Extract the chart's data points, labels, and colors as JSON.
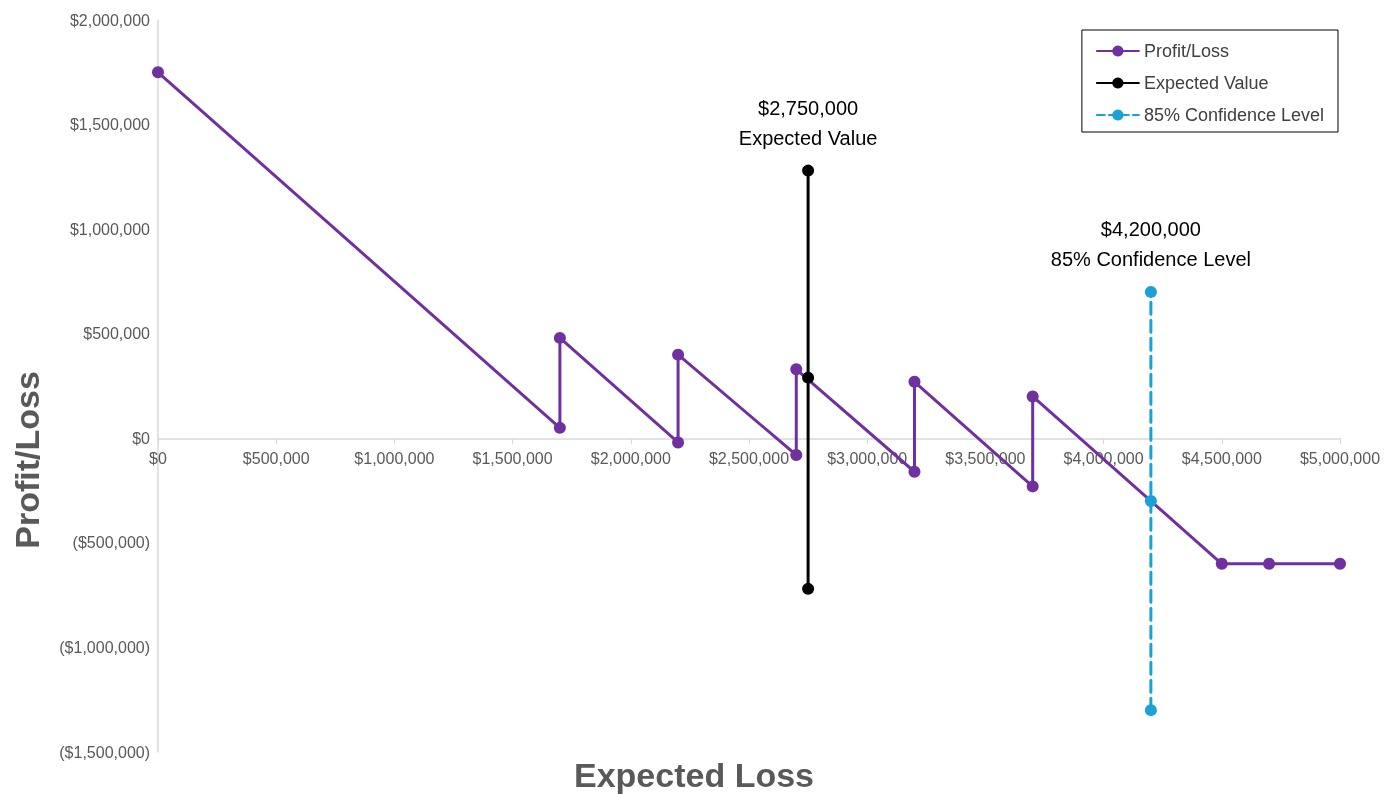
{
  "chart_data": {
    "type": "line",
    "xlabel": "Expected Loss",
    "ylabel": "Profit/Loss",
    "xlim": [
      0,
      5000000
    ],
    "ylim": [
      -1500000,
      2000000
    ],
    "xticks": [
      {
        "value": 0,
        "label": "$0"
      },
      {
        "value": 500000,
        "label": "$500,000"
      },
      {
        "value": 1000000,
        "label": "$1,000,000"
      },
      {
        "value": 1500000,
        "label": "$1,500,000"
      },
      {
        "value": 2000000,
        "label": "$2,000,000"
      },
      {
        "value": 2500000,
        "label": "$2,500,000"
      },
      {
        "value": 3000000,
        "label": "$3,000,000"
      },
      {
        "value": 3500000,
        "label": "$3,500,000"
      },
      {
        "value": 4000000,
        "label": "$4,000,000"
      },
      {
        "value": 4500000,
        "label": "$4,500,000"
      },
      {
        "value": 5000000,
        "label": "$5,000,000"
      }
    ],
    "yticks": [
      {
        "value": -1500000,
        "label": "($1,500,000)"
      },
      {
        "value": -1000000,
        "label": "($1,000,000)"
      },
      {
        "value": -500000,
        "label": "($500,000)"
      },
      {
        "value": 0,
        "label": "$0"
      },
      {
        "value": 500000,
        "label": "$500,000"
      },
      {
        "value": 1000000,
        "label": "$1,000,000"
      },
      {
        "value": 1500000,
        "label": "$1,500,000"
      },
      {
        "value": 2000000,
        "label": "$2,000,000"
      }
    ],
    "grid": false,
    "legend": "top right",
    "marker": "circle",
    "series": [
      {
        "name": "Profit/Loss",
        "color": "#7030a0",
        "x": [
          0,
          1700000,
          1700000,
          2200000,
          2200000,
          2700000,
          2700000,
          3200000,
          3200000,
          3700000,
          3700000,
          4500000,
          4700000,
          5000000
        ],
        "values": [
          1750000,
          50000,
          480000,
          -20000,
          400000,
          -80000,
          330000,
          -160000,
          270000,
          -230000,
          200000,
          -600000,
          -600000,
          -600000
        ]
      },
      {
        "name": "Expected Value",
        "color": "#000000",
        "x": [
          2750000,
          2750000,
          2750000
        ],
        "values": [
          -720000,
          290000,
          1280000
        ]
      },
      {
        "name": "85% Confidence Level",
        "color": "#1ba1d6",
        "line_style": "dashed",
        "x": [
          4200000,
          4200000,
          4200000
        ],
        "values": [
          -1300000,
          -300000,
          700000
        ]
      }
    ],
    "annotations": [
      {
        "text": "$2,750,000\nExpected Value",
        "x": 2750000,
        "y": 1280000
      },
      {
        "text": "$4,200,000\n85% Confidence Level",
        "x": 4200000,
        "y": 700000
      }
    ]
  }
}
